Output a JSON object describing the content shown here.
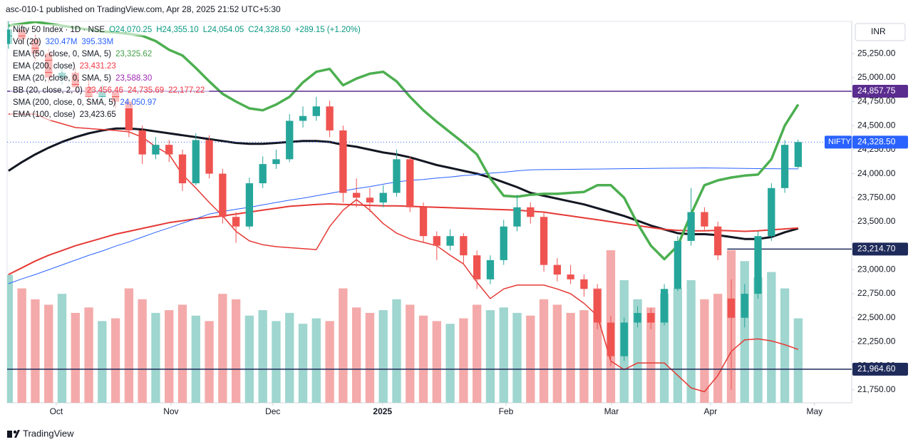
{
  "chart_data": {
    "type": "candlestick",
    "header": "asc-010-1 published on TradingView.com, Apr 28, 2025 21:52 UTC+5:30",
    "footer": "TradingView",
    "currency": "INR",
    "legend": [
      {
        "name": "Nifty 50 Index · 1D · NSE",
        "values": [
          "O24,070.25",
          "H24,355.10",
          "L24,054.05",
          "C24,328.50",
          "+289.15 (+1.20%)"
        ],
        "color": "#089981"
      },
      {
        "name": "Vol (20)",
        "values": [
          "320.47M",
          "395.33M"
        ],
        "color": "#2962ff"
      },
      {
        "name": "EMA (50, close, 0, SMA, 5)",
        "values": [
          "23,325.62"
        ],
        "color": "#43a047"
      },
      {
        "name": "EMA (200, close)",
        "values": [
          "23,431.23"
        ],
        "color": "#f23645"
      },
      {
        "name": "EMA (20, close, 0, SMA, 5)",
        "values": [
          "23,588.30"
        ],
        "color": "#9c27b0"
      },
      {
        "name": "BB (20, close, 2, 0)",
        "values": [
          "23,456.46",
          "24,735.69",
          "22,177.22"
        ],
        "color": "#f23645"
      },
      {
        "name": "SMA (200, close, 0, SMA, 5)",
        "values": [
          "24,050.97"
        ],
        "color": "#2962ff"
      },
      {
        "name": "EMA (100, close)",
        "values": [
          "23,423.65"
        ],
        "color": "#131722"
      }
    ],
    "up_color": "#26a69a",
    "down_color": "#ef5350",
    "volume_up_color": "#9fd6cf",
    "volume_down_color": "#f4aaaa",
    "ohlc": [
      [
        25350,
        25620,
        25300,
        25500
      ],
      [
        25500,
        25560,
        25350,
        25400
      ],
      [
        25400,
        25450,
        25180,
        25250
      ],
      [
        25250,
        25300,
        24950,
        25000
      ],
      [
        25000,
        25120,
        24930,
        25050
      ],
      [
        25050,
        25100,
        24850,
        24900
      ],
      [
        24900,
        24980,
        24720,
        24800
      ],
      [
        24800,
        24920,
        24760,
        24850
      ],
      [
        24850,
        24900,
        24680,
        24750
      ],
      [
        24750,
        24780,
        24380,
        24450
      ],
      [
        24450,
        24500,
        24100,
        24200
      ],
      [
        24200,
        24380,
        24150,
        24300
      ],
      [
        24300,
        24350,
        24120,
        24200
      ],
      [
        24200,
        24250,
        23820,
        23900
      ],
      [
        23900,
        24420,
        23880,
        24350
      ],
      [
        24350,
        24400,
        23950,
        24000
      ],
      [
        24000,
        24050,
        23480,
        23550
      ],
      [
        23550,
        23600,
        23280,
        23450
      ],
      [
        23450,
        23960,
        23420,
        23900
      ],
      [
        23900,
        24180,
        23850,
        24100
      ],
      [
        24100,
        24250,
        24050,
        24150
      ],
      [
        24150,
        24620,
        24120,
        24550
      ],
      [
        24550,
        24700,
        24480,
        24600
      ],
      [
        24600,
        24800,
        24550,
        24700
      ],
      [
        24700,
        24760,
        24380,
        24450
      ],
      [
        24450,
        24500,
        23700,
        23800
      ],
      [
        23800,
        23950,
        23650,
        23750
      ],
      [
        23750,
        23850,
        23600,
        23700
      ],
      [
        23700,
        23880,
        23650,
        23800
      ],
      [
        23800,
        24250,
        23760,
        24150
      ],
      [
        24150,
        24180,
        23600,
        23650
      ],
      [
        23650,
        23700,
        23280,
        23350
      ],
      [
        23350,
        23400,
        23100,
        23250
      ],
      [
        23250,
        23420,
        23200,
        23350
      ],
      [
        23350,
        23380,
        23050,
        23150
      ],
      [
        23150,
        23200,
        22800,
        22900
      ],
      [
        22900,
        23150,
        22850,
        23100
      ],
      [
        23100,
        23520,
        23050,
        23450
      ],
      [
        23450,
        23780,
        23400,
        23650
      ],
      [
        23650,
        23700,
        23480,
        23550
      ],
      [
        23550,
        23600,
        22980,
        23050
      ],
      [
        23050,
        23120,
        22880,
        22950
      ],
      [
        22950,
        23050,
        22850,
        22900
      ],
      [
        22900,
        22950,
        22720,
        22800
      ],
      [
        22800,
        22850,
        22380,
        22450
      ],
      [
        22450,
        22520,
        22000,
        22100
      ],
      [
        22100,
        22500,
        22050,
        22450
      ],
      [
        22450,
        22620,
        22400,
        22550
      ],
      [
        22550,
        22600,
        22380,
        22450
      ],
      [
        22450,
        22850,
        22420,
        22800
      ],
      [
        22800,
        23350,
        22780,
        23300
      ],
      [
        23300,
        23850,
        23250,
        23600
      ],
      [
        23600,
        23650,
        23400,
        23450
      ],
      [
        23450,
        23500,
        23100,
        23150
      ],
      [
        22700,
        22900,
        21750,
        22500
      ],
      [
        22500,
        22850,
        22400,
        22750
      ],
      [
        22750,
        23400,
        22700,
        23350
      ],
      [
        23350,
        23900,
        23300,
        23850
      ],
      [
        23850,
        24350,
        23800,
        24300
      ],
      [
        24070.25,
        24355.1,
        24054.05,
        24328.5
      ]
    ],
    "volume": {
      "ylim": [
        0,
        1400
      ],
      "values": [
        470,
        420,
        380,
        360,
        400,
        330,
        350,
        300,
        310,
        420,
        380,
        330,
        340,
        360,
        320,
        300,
        400,
        380,
        320,
        340,
        300,
        330,
        290,
        310,
        300,
        420,
        350,
        330,
        340,
        380,
        360,
        320,
        300,
        290,
        310,
        360,
        340,
        350,
        330,
        320,
        380,
        360,
        330,
        340,
        420,
        560,
        450,
        380,
        350,
        400,
        420,
        450,
        380,
        400,
        560,
        520,
        460,
        480,
        420,
        310
      ]
    },
    "overlays": [
      {
        "color": "#131722",
        "width": 3,
        "values": [
          24030,
          24120,
          24200,
          24270,
          24330,
          24380,
          24420,
          24450,
          24470,
          24470,
          24460,
          24440,
          24420,
          24400,
          24380,
          24360,
          24340,
          24320,
          24310,
          24310,
          24320,
          24330,
          24340,
          24340,
          24330,
          24300,
          24280,
          24250,
          24220,
          24200,
          24170,
          24130,
          24090,
          24060,
          24030,
          24000,
          23960,
          23910,
          23860,
          23800,
          23770,
          23740,
          23710,
          23680,
          23640,
          23600,
          23560,
          23510,
          23460,
          23420,
          23380,
          23370,
          23370,
          23360,
          23340,
          23320,
          23320,
          23340,
          23390,
          23430
        ]
      },
      {
        "color": "#e53935",
        "width": 2,
        "values": [
          22950,
          23020,
          23090,
          23150,
          23200,
          23250,
          23290,
          23330,
          23370,
          23400,
          23430,
          23460,
          23490,
          23510,
          23530,
          23545,
          23560,
          23580,
          23600,
          23620,
          23640,
          23660,
          23670,
          23680,
          23685,
          23680,
          23675,
          23670,
          23665,
          23665,
          23660,
          23655,
          23650,
          23645,
          23640,
          23635,
          23630,
          23625,
          23620,
          23610,
          23600,
          23580,
          23560,
          23540,
          23520,
          23500,
          23480,
          23460,
          23440,
          23420,
          23410,
          23405,
          23405,
          23410,
          23405,
          23400,
          23405,
          23415,
          23425,
          23435
        ]
      },
      {
        "color": "#2962ff",
        "width": 1,
        "values": [
          22855,
          22905,
          22950,
          23000,
          23050,
          23100,
          23150,
          23195,
          23245,
          23290,
          23340,
          23390,
          23435,
          23485,
          23530,
          23580,
          23605,
          23630,
          23650,
          23675,
          23700,
          23725,
          23745,
          23770,
          23795,
          23820,
          23845,
          23865,
          23890,
          23915,
          23930,
          23940,
          23955,
          23965,
          23980,
          23990,
          24005,
          24015,
          24030,
          24040,
          24042,
          24044,
          24045,
          24047,
          24048,
          24050,
          24052,
          24053,
          24055,
          24056,
          24057,
          24058,
          24060,
          24058,
          24056,
          24055,
          24053,
          24052,
          24051,
          24050
        ]
      },
      {
        "color": "#4caf50",
        "width": 3.5,
        "values": [
          25540,
          25560,
          25580,
          25560,
          25540,
          25520,
          25500,
          25480,
          25470,
          25455,
          25435,
          25380,
          25290,
          25230,
          25100,
          24960,
          24830,
          24750,
          24680,
          24660,
          24720,
          24800,
          24950,
          25060,
          25090,
          24920,
          24990,
          25040,
          25060,
          24960,
          24800,
          24660,
          24540,
          24430,
          24320,
          24200,
          23950,
          23770,
          23760,
          23780,
          23790,
          23790,
          23800,
          23810,
          23880,
          23880,
          23750,
          23480,
          23250,
          23110,
          23250,
          23580,
          23880,
          23930,
          23960,
          23980,
          23990,
          24150,
          24500,
          24720
        ]
      },
      {
        "color": "#e53935",
        "width": 1.5,
        "values": [
          24620,
          24620,
          24620,
          24560,
          24520,
          24480,
          24470,
          24460,
          24450,
          24435,
          24380,
          24280,
          24200,
          23990,
          23850,
          23700,
          23560,
          23400,
          23300,
          23260,
          23240,
          23230,
          23220,
          23210,
          23450,
          23620,
          23730,
          23620,
          23480,
          23380,
          23320,
          23285,
          23250,
          23150,
          23060,
          22870,
          22700,
          22800,
          22840,
          22840,
          22840,
          22800,
          22750,
          22650,
          22520,
          22050,
          21960,
          22030,
          22030,
          22030,
          21900,
          21770,
          21730,
          21900,
          22150,
          22270,
          22280,
          22260,
          22220,
          22170
        ]
      }
    ],
    "levels": [
      {
        "value": 24857.75,
        "label": "24,857.75",
        "color": "#5b2c8f",
        "x_from": -0.1
      },
      {
        "value": 23214.7,
        "label": "23,214.70",
        "color": "#1e2a5a",
        "x_from": 53.7
      },
      {
        "value": 21964.6,
        "label": "21,964.60",
        "color": "#1e2a5a",
        "x_from": -0.1
      }
    ],
    "last_price": {
      "name": "NIFTY",
      "value": 24328.5,
      "label": "24,328.50",
      "color": "#2962ff"
    },
    "xlim": [
      -0.1,
      63
    ],
    "xticks": [
      {
        "value": 3.57,
        "label": "Oct"
      },
      {
        "value": 12.14,
        "label": "Nov"
      },
      {
        "value": 19.75,
        "label": "Dec"
      },
      {
        "value": 27.95,
        "label": "2025"
      },
      {
        "value": 37.17,
        "label": "Feb"
      },
      {
        "value": 45.05,
        "label": "Mar"
      },
      {
        "value": 52.45,
        "label": "Apr"
      },
      {
        "value": 60.22,
        "label": "May"
      }
    ],
    "ylim": [
      21615,
      25585
    ],
    "yticks": [
      {
        "value": 25250,
        "label": "25,250.00"
      },
      {
        "value": 25000,
        "label": "25,000.00"
      },
      {
        "value": 24750,
        "label": "24,750.00"
      },
      {
        "value": 24500,
        "label": "24,500.00"
      },
      {
        "value": 24250,
        "label": "24,250.00"
      },
      {
        "value": 24000,
        "label": "24,000.00"
      },
      {
        "value": 23750,
        "label": "23,750.00"
      },
      {
        "value": 23500,
        "label": "23,500.00"
      },
      {
        "value": 23000,
        "label": "23,000.00"
      },
      {
        "value": 22750,
        "label": "22,750.00"
      },
      {
        "value": 22500,
        "label": "22,500.00"
      },
      {
        "value": 22250,
        "label": "22,250.00"
      },
      {
        "value": 22000,
        "label": "22,000.00"
      },
      {
        "value": 21750,
        "label": "21,750.00"
      }
    ],
    "grid": false
  }
}
